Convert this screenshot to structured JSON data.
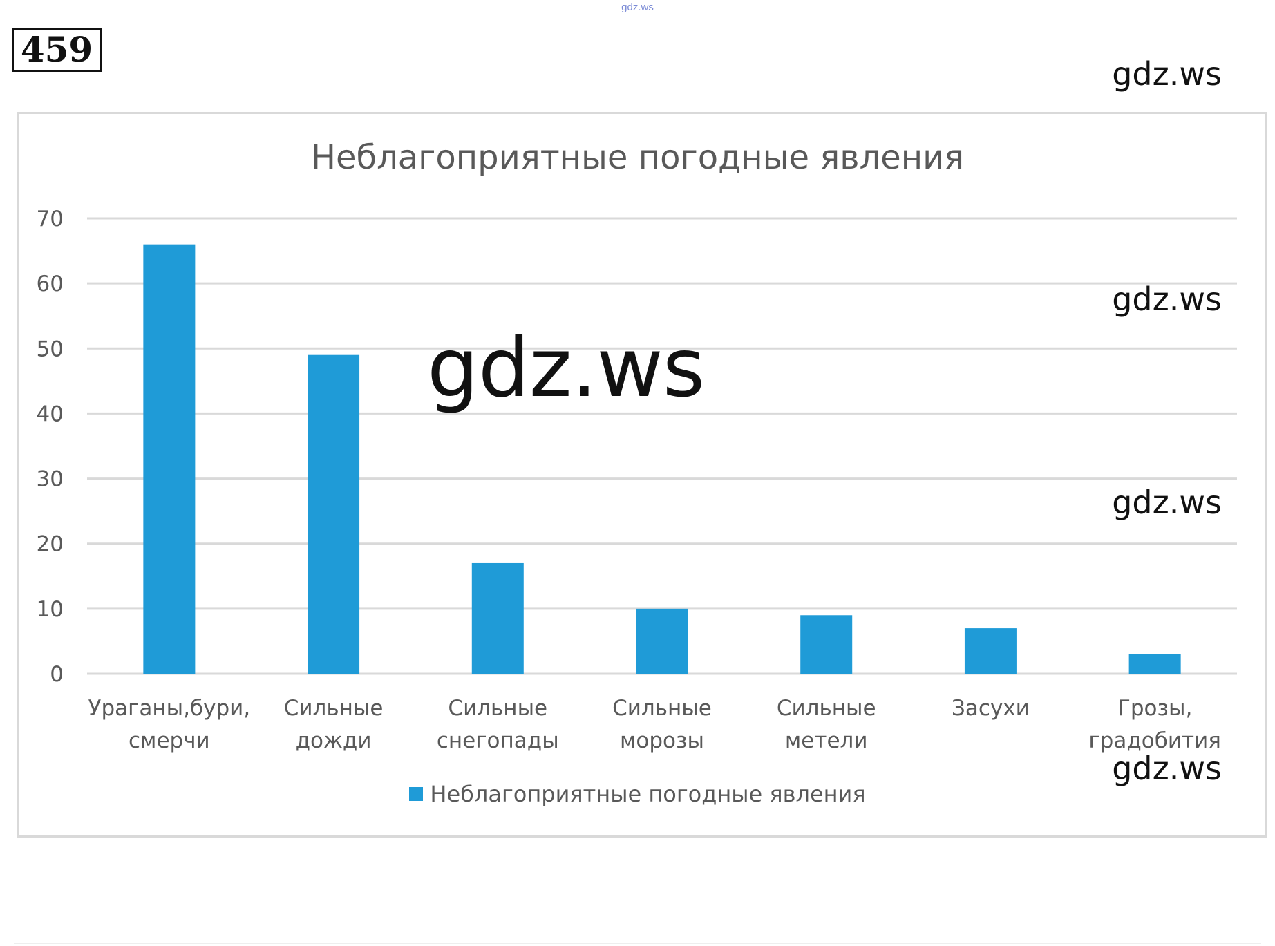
{
  "site_mark": "gdz.ws",
  "task_number": "459",
  "watermarks": [
    "gdz.ws",
    "gdz.ws",
    "gdz.ws",
    "gdz.ws",
    "gdz.ws"
  ],
  "colors": {
    "bar": "#1f9bd7",
    "grid": "#d9d9d9",
    "text": "#595959"
  },
  "chart_data": {
    "type": "bar",
    "title": "Неблагоприятные погодные явления",
    "categories": [
      [
        "Ураганы,бури,",
        "смерчи"
      ],
      [
        "Сильные",
        "дожди"
      ],
      [
        "Сильные",
        "снегопады"
      ],
      [
        "Сильные",
        "морозы"
      ],
      [
        "Сильные",
        "метели"
      ],
      [
        "Засухи"
      ],
      [
        "Грозы,",
        "градобития"
      ]
    ],
    "series": [
      {
        "name": "Неблагоприятные погодные явления",
        "values": [
          66,
          49,
          17,
          10,
          9,
          7,
          3
        ]
      }
    ],
    "ylim": [
      0,
      70
    ],
    "yticks": [
      0,
      10,
      20,
      30,
      40,
      50,
      60,
      70
    ],
    "grid": true,
    "legend": "bottom"
  }
}
